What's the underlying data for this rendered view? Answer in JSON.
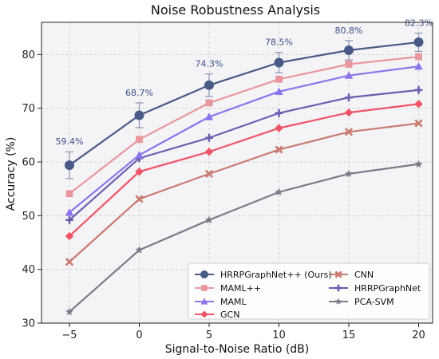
{
  "chart_data": {
    "type": "line",
    "title": "Noise Robustness Analysis",
    "xlabel": "Signal-to-Noise Ratio (dB)",
    "ylabel": "Accuracy (%)",
    "x": [
      -5,
      0,
      5,
      10,
      15,
      20
    ],
    "x_tick_labels": [
      "−5",
      "0",
      "5",
      "10",
      "15",
      "20"
    ],
    "y_ticks": [
      30,
      40,
      50,
      60,
      70,
      80
    ],
    "xlim": [
      -7,
      21
    ],
    "ylim": [
      30,
      86
    ],
    "grid": true,
    "legend_position": "lower-right",
    "series": [
      {
        "name": "HRRPGraphNet++ (Ours)",
        "values": [
          59.4,
          68.7,
          74.3,
          78.5,
          80.8,
          82.3
        ],
        "color": "#4a5a86",
        "marker": "circle",
        "error": [
          2.5,
          2.3,
          2.1,
          1.9,
          1.8,
          1.7
        ]
      },
      {
        "name": "MAML++",
        "values": [
          54.1,
          64.2,
          71.0,
          75.4,
          78.2,
          79.6
        ],
        "color": "#e8979d",
        "marker": "square"
      },
      {
        "name": "MAML",
        "values": [
          50.6,
          61.3,
          68.4,
          73.1,
          76.1,
          77.8
        ],
        "color": "#8b74ec",
        "marker": "triangle"
      },
      {
        "name": "GCN",
        "values": [
          46.2,
          58.2,
          61.9,
          66.3,
          69.2,
          70.8
        ],
        "color": "#ef5466",
        "marker": "diamond"
      },
      {
        "name": "CNN",
        "values": [
          41.4,
          53.1,
          57.8,
          62.3,
          65.6,
          67.2
        ],
        "color": "#c97a71",
        "marker": "x"
      },
      {
        "name": "HRRPGraphNet",
        "values": [
          49.2,
          60.7,
          64.5,
          69.1,
          72.0,
          73.4
        ],
        "color": "#6a5fb0",
        "marker": "plus"
      },
      {
        "name": "PCA-SVM",
        "values": [
          32.1,
          43.6,
          49.2,
          54.4,
          57.8,
          59.6
        ],
        "color": "#7b7c8a",
        "marker": "star"
      }
    ],
    "annotations": [
      "59.4%",
      "68.7%",
      "74.3%",
      "78.5%",
      "80.8%",
      "82.3%"
    ]
  }
}
